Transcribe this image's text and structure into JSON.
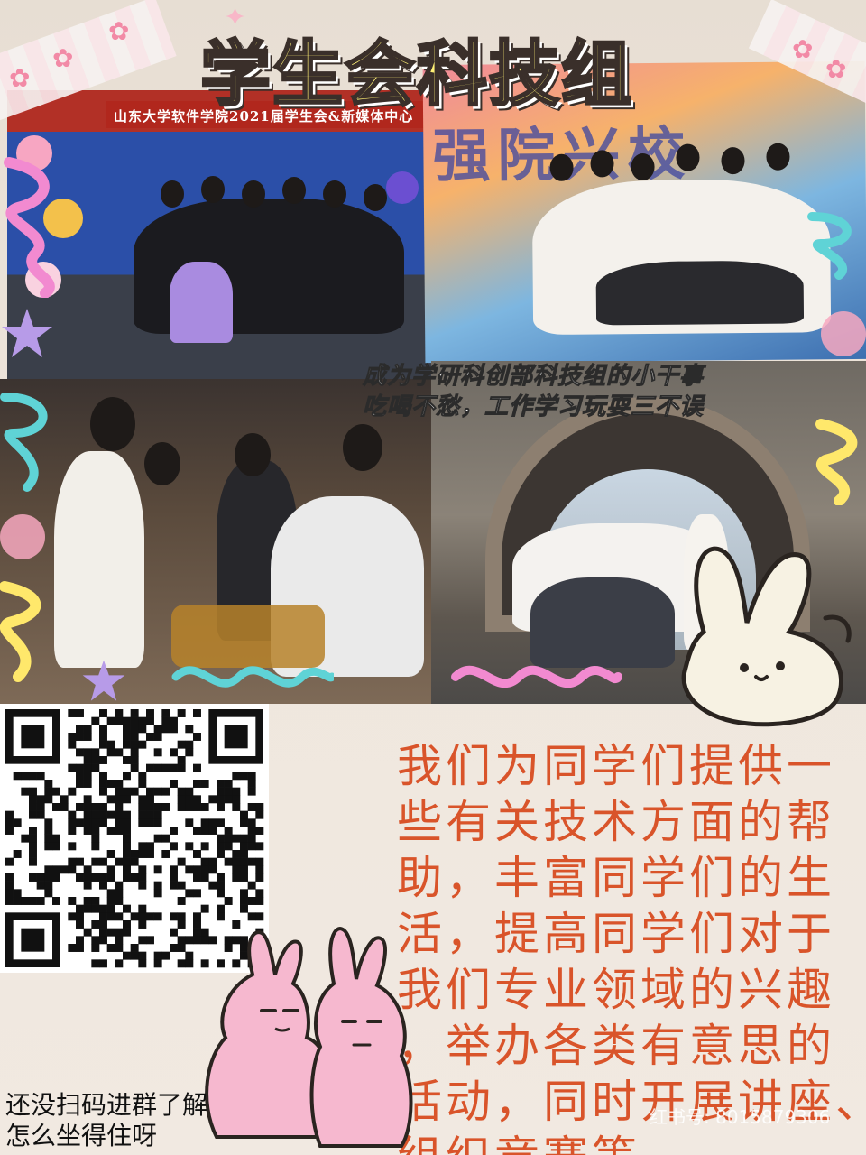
{
  "title": "学生会科技组",
  "photo1": {
    "banner": "山东大学软件学院2021届学生会&新媒体中心"
  },
  "photo2": {
    "backdrop_text": "强院兴校"
  },
  "caption": {
    "line1": "成为学研科创部科技组的小干事",
    "line2": "吃喝不愁，工作学习玩耍三不误"
  },
  "description": {
    "lines": [
      "我们为同学们提供一",
      "些有关技术方面的帮",
      "助，丰富同学们的生",
      "活，提高同学们对于",
      "我们专业领域的兴趣",
      "，举办各类有意思的",
      "活动，同时开展讲座、",
      "组织竞赛等。"
    ]
  },
  "scan_note": {
    "line1": "还没扫码进群了解",
    "line2": "怎么坐得住呀"
  },
  "watermark": "红书号: 8015879306",
  "icons": [
    "tulip-icon",
    "sparkle-icon",
    "qr-code",
    "bunny-sticker",
    "pink-bunnies-sticker"
  ],
  "colors": {
    "title_fill": "#fff176",
    "description": "#d9542a",
    "accent_pink": "#f28aa6",
    "accent_teal": "#5fd3d6"
  }
}
